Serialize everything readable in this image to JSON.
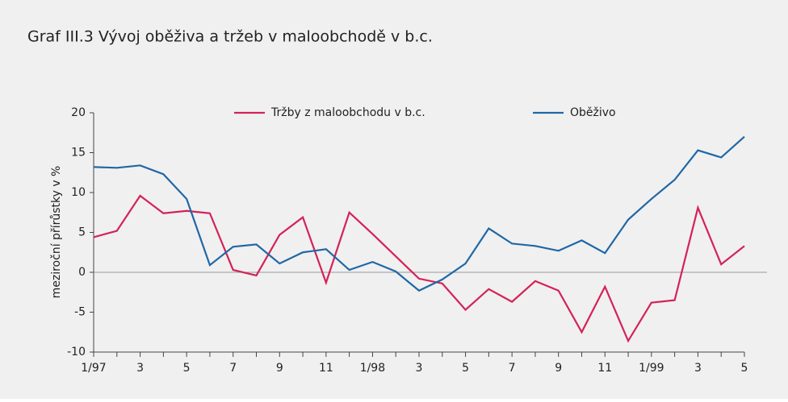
{
  "chart_data": {
    "type": "line",
    "title": "Graf III.3  Vývoj oběživa a tržeb v maloobchodě v b.c.",
    "ylabel": "meziroční přírůstky v %",
    "categories": [
      "1/97",
      null,
      "3",
      null,
      "5",
      null,
      "7",
      null,
      "9",
      null,
      "11",
      null,
      "1/98",
      null,
      "3",
      null,
      "5",
      null,
      "7",
      null,
      "9",
      null,
      "11",
      null,
      "1/99",
      null,
      "3",
      null,
      "5"
    ],
    "series": [
      {
        "name": "Tržby z maloobchodu v b.c.",
        "color": "#d42258",
        "values": [
          4.4,
          5.2,
          9.6,
          7.4,
          7.7,
          7.4,
          0.3,
          -0.4,
          4.7,
          6.9,
          -1.3,
          7.5,
          4.8,
          2.0,
          -0.8,
          -1.4,
          -4.7,
          -2.1,
          -3.7,
          -1.1,
          -2.3,
          -7.5,
          -1.8,
          -8.6,
          -3.8,
          -3.5,
          8.1,
          1.0,
          3.3
        ]
      },
      {
        "name": "Oběživo",
        "color": "#1f67a6",
        "values": [
          13.2,
          13.1,
          13.4,
          12.3,
          9.2,
          0.9,
          3.2,
          3.5,
          1.1,
          2.5,
          2.9,
          0.3,
          1.3,
          0.1,
          -2.3,
          -0.9,
          1.1,
          5.5,
          3.6,
          3.3,
          2.7,
          4.0,
          2.4,
          6.6,
          9.2,
          11.6,
          15.3,
          14.4,
          17.0
        ]
      }
    ],
    "ylim": [
      -10,
      20
    ],
    "yticks": [
      -10,
      -5,
      0,
      5,
      10,
      15,
      20
    ],
    "legend": "top"
  }
}
